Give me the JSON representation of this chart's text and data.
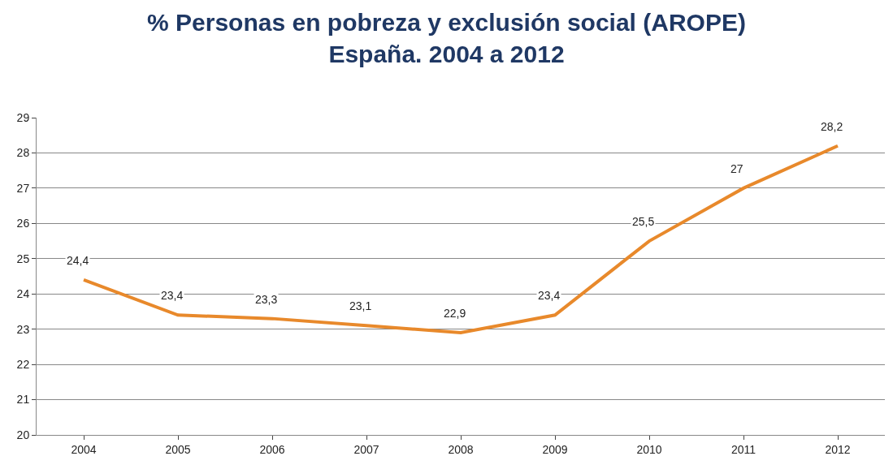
{
  "chart_data": {
    "type": "line",
    "title": "% Personas en pobreza y exclusión social (AROPE)\nEspaña. 2004 a 2012",
    "categories": [
      "2004",
      "2005",
      "2006",
      "2007",
      "2008",
      "2009",
      "2010",
      "2011",
      "2012"
    ],
    "series": [
      {
        "color": "#e8892b",
        "values": [
          24.4,
          23.4,
          23.3,
          23.1,
          22.9,
          23.4,
          25.5,
          27,
          28.2
        ],
        "value_labels": [
          "24,4",
          "23,4",
          "23,3",
          "23,1",
          "22,9",
          "23,4",
          "25,5",
          "27",
          "28,2"
        ]
      }
    ],
    "ylim": [
      20,
      29
    ],
    "yticks": [
      20,
      21,
      22,
      23,
      24,
      25,
      26,
      27,
      28,
      29
    ],
    "grid": "y",
    "marker": "none",
    "line_style": "solid"
  }
}
